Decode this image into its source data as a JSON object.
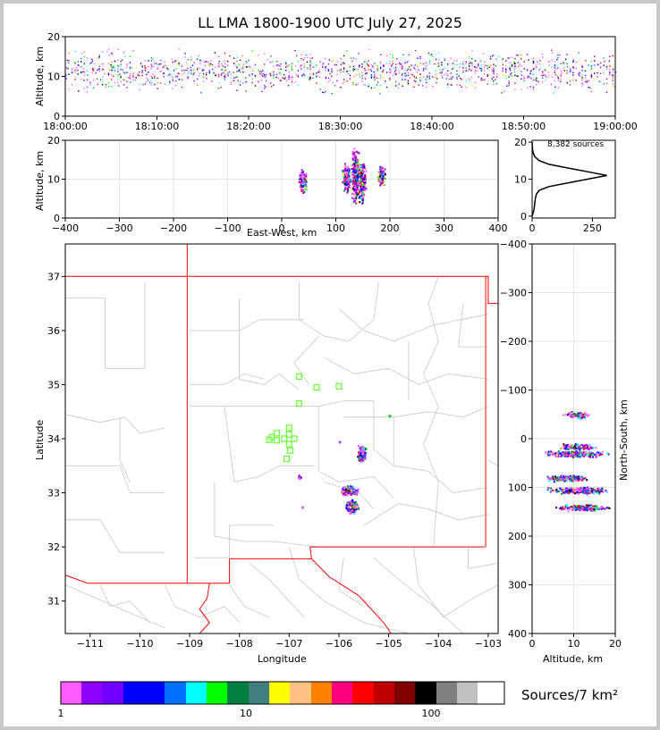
{
  "chart_data": {
    "type": "scatter",
    "title": "LL LMA 1800-1900 UTC July 27, 2025",
    "time_panel": {
      "ylabel": "Altitude, km",
      "ylim": [
        0,
        20
      ],
      "yticks": [
        "0",
        "10",
        "20"
      ],
      "xticks": [
        "18:00:00",
        "18:10:00",
        "18:20:00",
        "18:30:00",
        "18:40:00",
        "18:50:00",
        "19:00:00"
      ]
    },
    "ew_panel": {
      "xlabel": "East-West, km",
      "ylabel": "Altitude, km",
      "xlim": [
        -400,
        400
      ],
      "xticks": [
        "−400",
        "−300",
        "−200",
        "−100",
        "0",
        "100",
        "200",
        "300",
        "400"
      ],
      "yticks": [
        "0",
        "10",
        "20"
      ],
      "clusters": [
        {
          "x": 38,
          "ymin": 6,
          "ymax": 13
        },
        {
          "x": 118,
          "ymin": 6,
          "ymax": 15
        },
        {
          "x": 135,
          "ymin": 2,
          "ymax": 20
        },
        {
          "x": 148,
          "ymin": 3,
          "ymax": 16
        },
        {
          "x": 183,
          "ymin": 8,
          "ymax": 14
        }
      ]
    },
    "histogram": {
      "annotation": "8,382 sources",
      "xticks": [
        "0",
        "250"
      ],
      "yticks": [
        "0",
        "10",
        "20"
      ],
      "profile": [
        [
          0,
          0
        ],
        [
          1,
          5
        ],
        [
          2,
          8
        ],
        [
          3,
          10
        ],
        [
          4,
          12
        ],
        [
          5,
          14
        ],
        [
          6,
          18
        ],
        [
          7,
          30
        ],
        [
          8,
          70
        ],
        [
          9,
          150
        ],
        [
          10,
          230
        ],
        [
          11,
          310
        ],
        [
          12,
          230
        ],
        [
          13,
          150
        ],
        [
          14,
          70
        ],
        [
          15,
          30
        ],
        [
          16,
          12
        ],
        [
          17,
          5
        ],
        [
          18,
          2
        ],
        [
          20,
          0
        ]
      ]
    },
    "map": {
      "xlabel": "Longitude",
      "ylabel": "Latitude",
      "xlim": [
        -111.5,
        -102.8
      ],
      "ylim": [
        30.4,
        37.6
      ],
      "xticks": [
        "−111",
        "−110",
        "−109",
        "−108",
        "−107",
        "−106",
        "−105",
        "−104",
        "−103"
      ],
      "yticks": [
        "31",
        "32",
        "33",
        "34",
        "35",
        "36",
        "37"
      ],
      "stations": [
        [
          -106.8,
          35.15
        ],
        [
          -106.45,
          34.95
        ],
        [
          -106.0,
          34.97
        ],
        [
          -106.8,
          34.65
        ],
        [
          -107.0,
          34.2
        ],
        [
          -107.25,
          34.1
        ],
        [
          -107.0,
          34.08
        ],
        [
          -107.35,
          34.03
        ],
        [
          -107.1,
          34.0
        ],
        [
          -106.9,
          34.0
        ],
        [
          -107.25,
          33.97
        ],
        [
          -107.4,
          33.98
        ],
        [
          -107.0,
          33.9
        ],
        [
          -106.98,
          33.78
        ],
        [
          -107.05,
          33.63
        ]
      ],
      "source_clusters": [
        {
          "lon": -105.55,
          "lat": 33.72,
          "w": 0.2,
          "h": 0.35
        },
        {
          "lon": -105.8,
          "lat": 33.05,
          "w": 0.45,
          "h": 0.2
        },
        {
          "lon": -105.75,
          "lat": 32.75,
          "w": 0.3,
          "h": 0.3
        },
        {
          "lon": -106.8,
          "lat": 33.3,
          "w": 0.1,
          "h": 0.08
        },
        {
          "lon": -105.0,
          "lat": 34.43,
          "w": 0.08,
          "h": 0.03
        },
        {
          "lon": -106.0,
          "lat": 33.95,
          "w": 0.04,
          "h": 0.03
        },
        {
          "lon": -106.75,
          "lat": 32.75,
          "w": 0.03,
          "h": 0.05
        }
      ]
    },
    "ns_panel": {
      "xlabel": "Altitude, km",
      "ylabel": "North-South, km",
      "ylim": [
        -400,
        400
      ],
      "xticks": [
        "0",
        "10",
        "20"
      ],
      "yticks": [
        "−400",
        "−300",
        "−200",
        "−100",
        "0",
        "100",
        "200",
        "300",
        "400"
      ],
      "clusters": [
        {
          "y": 50,
          "xmin": 7,
          "xmax": 14
        },
        {
          "y": -15,
          "xmin": 6,
          "xmax": 16
        },
        {
          "y": -30,
          "xmin": 1,
          "xmax": 19
        },
        {
          "y": -80,
          "xmin": 2,
          "xmax": 15
        },
        {
          "y": -105,
          "xmin": 2,
          "xmax": 20
        },
        {
          "y": -140,
          "xmin": 4,
          "xmax": 20
        }
      ]
    },
    "colorbar": {
      "label": "Sources/7 km²",
      "tick_labels": [
        "1",
        "10",
        "100"
      ],
      "colors": [
        "#ff5cff",
        "#9000ff",
        "#7000ff",
        "#0000ff",
        "#0000ff",
        "#0070ff",
        "#00ffff",
        "#00ff00",
        "#008040",
        "#408080",
        "#ffff00",
        "#ffc080",
        "#ff8000",
        "#ff0080",
        "#ff0000",
        "#c00000",
        "#800000",
        "#000000",
        "#808080",
        "#c0c0c0",
        "#ffffff"
      ]
    }
  },
  "palette": {
    "map_border": "#ff0000",
    "county_lines": "#c8c8c8",
    "station_marker": "#66ff33"
  }
}
